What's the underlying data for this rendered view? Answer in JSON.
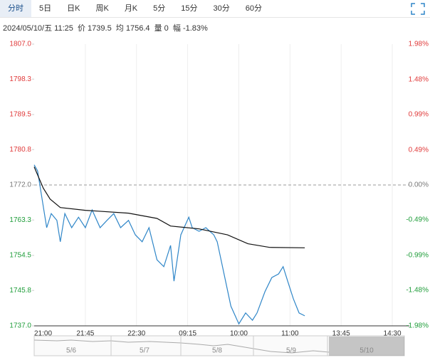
{
  "tabs": [
    "分时",
    "5日",
    "日K",
    "周K",
    "月K",
    "5分",
    "15分",
    "30分",
    "60分"
  ],
  "info": "2024/05/10/五 11:25  价 1739.5  均 1756.4  量 0  幅 -1.83%",
  "navigator": {
    "labels": [
      "5/6",
      "5/7",
      "5/8",
      "5/9",
      "5/10"
    ]
  },
  "chart_data": {
    "type": "line",
    "xlim": [
      0,
      330
    ],
    "xticks": [
      {
        "value": 0,
        "label": "21:00"
      },
      {
        "value": 45,
        "label": "21:45"
      },
      {
        "value": 90,
        "label": "22:30"
      },
      {
        "value": 135,
        "label": "09:15"
      },
      {
        "value": 180,
        "label": "10:00"
      },
      {
        "value": 225,
        "label": "11:00"
      },
      {
        "value": 270,
        "label": "13:45"
      },
      {
        "value": 315,
        "label": "14:30"
      }
    ],
    "ylim": [
      1737,
      1807
    ],
    "yticks": [
      {
        "value": 1737,
        "label": "1737.0"
      },
      {
        "value": 1745.8,
        "label": "1745.8"
      },
      {
        "value": 1754.5,
        "label": "1754.5"
      },
      {
        "value": 1763.3,
        "label": "1763.3"
      },
      {
        "value": 1772,
        "label": "1772.0"
      },
      {
        "value": 1780.8,
        "label": "1780.8"
      },
      {
        "value": 1789.5,
        "label": "1789.5"
      },
      {
        "value": 1798.3,
        "label": "1798.3"
      },
      {
        "value": 1807,
        "label": "1807.0"
      }
    ],
    "y2lim": [
      -1.98,
      1.98
    ],
    "y2ticks": [
      {
        "value": -1.98,
        "label": "-1.98%"
      },
      {
        "value": -1.48,
        "label": "-1.48%"
      },
      {
        "value": -0.99,
        "label": "-0.99%"
      },
      {
        "value": -0.49,
        "label": "-0.49%"
      },
      {
        "value": 0,
        "label": "0.00%"
      },
      {
        "value": 0.49,
        "label": "0.49%"
      },
      {
        "value": 0.99,
        "label": "0.99%"
      },
      {
        "value": 1.48,
        "label": "1.48%"
      },
      {
        "value": 1.98,
        "label": "1.98%"
      }
    ],
    "baseline": 1772,
    "up_color": "#e03a3a",
    "down_color": "#1f9d3a",
    "series": [
      {
        "color": "#2f86c8",
        "x": [
          0,
          3,
          6,
          9,
          11,
          15,
          20,
          23,
          27,
          33,
          39,
          45,
          51,
          58,
          64,
          70,
          76,
          83,
          89,
          95,
          101,
          108,
          114,
          120,
          123,
          129,
          136,
          139,
          145,
          151,
          158,
          161,
          167,
          173,
          180,
          186,
          192,
          196,
          203,
          209,
          215,
          219,
          223,
          228,
          233,
          238
        ],
        "values": [
          1777.0,
          1775.5,
          1770.2,
          1764.9,
          1761.4,
          1764.9,
          1763.2,
          1757.9,
          1764.9,
          1761.4,
          1764.0,
          1761.4,
          1765.8,
          1761.4,
          1763.2,
          1764.9,
          1761.4,
          1763.2,
          1759.6,
          1757.9,
          1761.4,
          1753.4,
          1751.7,
          1757.0,
          1748.1,
          1759.6,
          1764.0,
          1761.4,
          1760.5,
          1761.4,
          1759.6,
          1757.9,
          1749.9,
          1741.9,
          1737.5,
          1740.2,
          1738.4,
          1740.2,
          1745.5,
          1749.0,
          1749.9,
          1751.7,
          1748.1,
          1743.7,
          1740.2,
          1739.5
        ]
      },
      {
        "color": "#111111",
        "x": [
          0,
          8,
          14,
          23,
          45,
          83,
          108,
          120,
          145,
          170,
          188,
          207,
          238
        ],
        "values": [
          1776.5,
          1771.2,
          1768.5,
          1766.4,
          1765.7,
          1765.0,
          1763.7,
          1761.8,
          1761.1,
          1759.6,
          1757.4,
          1756.5,
          1756.4
        ]
      }
    ]
  }
}
